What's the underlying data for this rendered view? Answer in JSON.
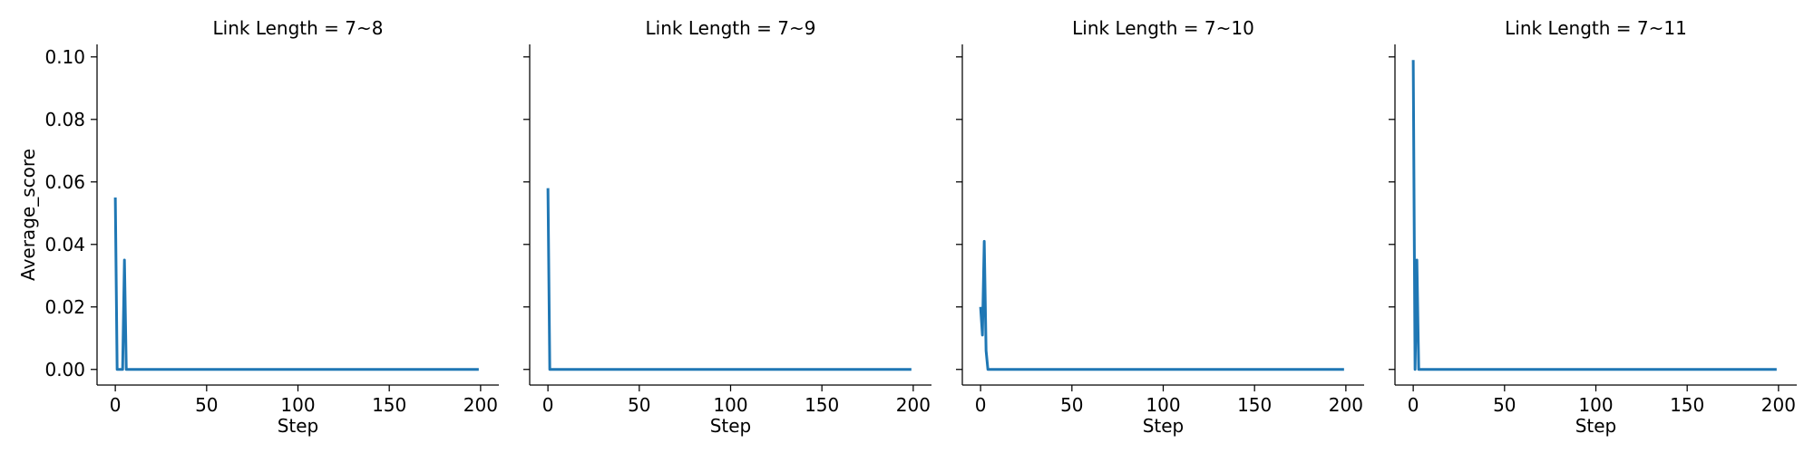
{
  "chart_data": {
    "type": "line",
    "ylabel": "Average_score",
    "xlabel": "Step",
    "xlim": [
      -10,
      210
    ],
    "ylim": [
      -0.005,
      0.104
    ],
    "x_ticks": [
      0,
      50,
      100,
      150,
      200
    ],
    "x_tick_labels": [
      "0",
      "50",
      "100",
      "150",
      "200"
    ],
    "y_ticks": [
      0.0,
      0.02,
      0.04,
      0.06,
      0.08,
      0.1
    ],
    "y_tick_labels": [
      "0.00",
      "0.02",
      "0.04",
      "0.06",
      "0.08",
      "0.10"
    ],
    "line_color": "#1f77b4",
    "panels": [
      {
        "title": "Link Length = 7~8",
        "x": [
          0,
          1,
          3,
          4,
          5,
          6,
          199
        ],
        "y": [
          0.055,
          0.0,
          0.0,
          0.0,
          0.035,
          0.0,
          0.0
        ]
      },
      {
        "title": "Link Length = 7~9",
        "x": [
          0,
          1,
          2,
          199
        ],
        "y": [
          0.058,
          0.0,
          0.0,
          0.0
        ]
      },
      {
        "title": "Link Length = 7~10",
        "x": [
          0,
          1,
          2,
          3,
          4,
          5,
          199
        ],
        "y": [
          0.02,
          0.011,
          0.041,
          0.006,
          0.0,
          0.0,
          0.0
        ]
      },
      {
        "title": "Link Length = 7~11",
        "x": [
          0,
          1,
          2,
          3,
          4,
          199
        ],
        "y": [
          0.099,
          0.0,
          0.035,
          0.0,
          0.0,
          0.0
        ]
      }
    ]
  }
}
